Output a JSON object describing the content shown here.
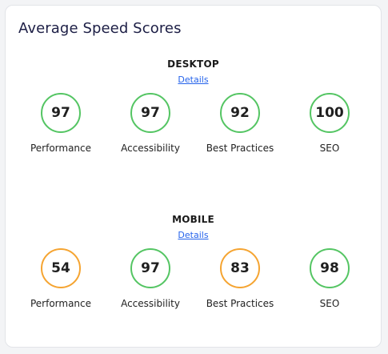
{
  "card": {
    "title": "Average Speed Scores"
  },
  "colors": {
    "good": "#54c563",
    "average": "#f5a431",
    "link": "#2563eb"
  },
  "desktop": {
    "title": "DESKTOP",
    "details_label": "Details",
    "metrics": [
      {
        "label": "Performance",
        "score": "97",
        "status": "good"
      },
      {
        "label": "Accessibility",
        "score": "97",
        "status": "good"
      },
      {
        "label": "Best Practices",
        "score": "92",
        "status": "good"
      },
      {
        "label": "SEO",
        "score": "100",
        "status": "good"
      }
    ]
  },
  "mobile": {
    "title": "MOBILE",
    "details_label": "Details",
    "metrics": [
      {
        "label": "Performance",
        "score": "54",
        "status": "average"
      },
      {
        "label": "Accessibility",
        "score": "97",
        "status": "good"
      },
      {
        "label": "Best Practices",
        "score": "83",
        "status": "average"
      },
      {
        "label": "SEO",
        "score": "98",
        "status": "good"
      }
    ]
  }
}
